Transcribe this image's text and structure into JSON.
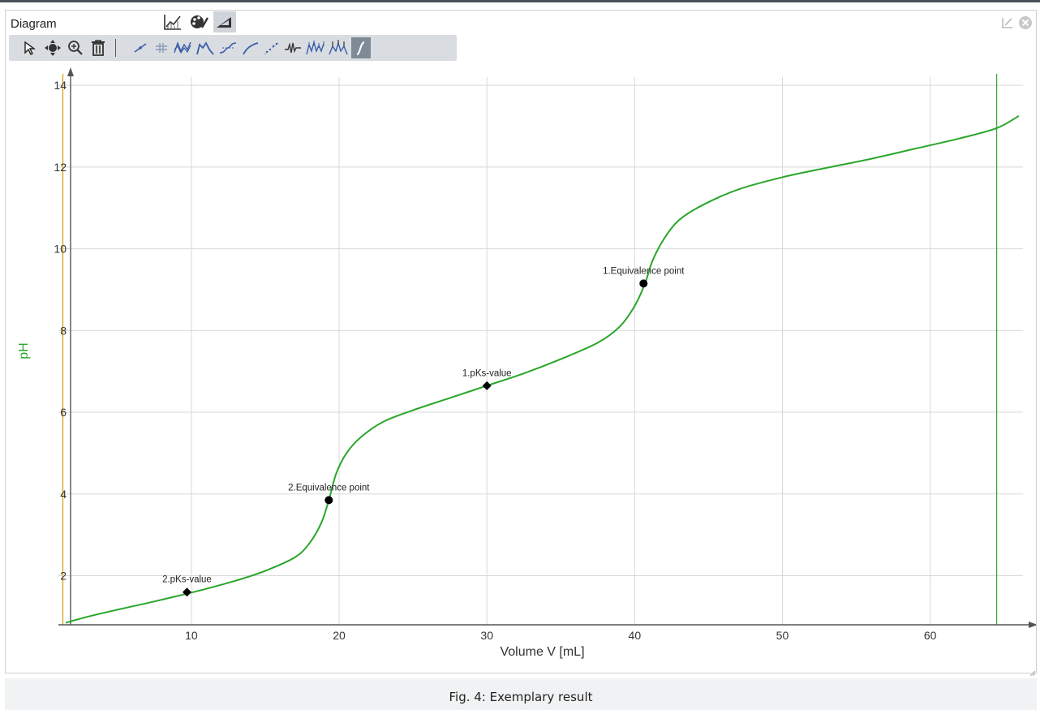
{
  "window": {
    "title": "Diagram",
    "caption": "Fig. 4: Exemplary result"
  },
  "view_tabs": [
    {
      "icon": "line-chart-icon",
      "active": false
    },
    {
      "icon": "palette-icon",
      "active": false
    },
    {
      "icon": "measure-triangle-icon",
      "active": true
    }
  ],
  "window_controls": [
    {
      "icon": "undock-icon"
    },
    {
      "icon": "close-circle-icon"
    }
  ],
  "toolbar": [
    {
      "icon": "pointer-icon",
      "active": false
    },
    {
      "icon": "move-icon",
      "active": false
    },
    {
      "icon": "zoom-icon",
      "active": false
    },
    {
      "icon": "trash-icon",
      "active": false
    },
    {
      "icon": "tangent-icon",
      "active": false
    },
    {
      "icon": "hash-icon",
      "active": false
    },
    {
      "icon": "multi-curve-icon",
      "active": false
    },
    {
      "icon": "peak-icon",
      "active": false
    },
    {
      "icon": "sigmoid-icon",
      "active": false
    },
    {
      "icon": "smooth-curve-icon",
      "active": false
    },
    {
      "icon": "scatter-fit-icon",
      "active": false
    },
    {
      "icon": "waveform-icon",
      "active": false
    },
    {
      "icon": "peaks-icon",
      "active": false
    },
    {
      "icon": "peaks-marker-icon",
      "active": false
    },
    {
      "icon": "titration-icon",
      "active": true
    }
  ],
  "colors": {
    "curve": "#2aa62a",
    "ylabel": "#2aa62a",
    "grid": "#d8d8d8",
    "axis": "#555555",
    "left_marker_line": "#d9a21a",
    "right_marker_line": "#3aa83a",
    "points": "#000000"
  },
  "chart_data": {
    "type": "line",
    "title": "",
    "xlabel": "Volume V [mL]",
    "ylabel": "pH",
    "xlim": [
      1,
      66.5
    ],
    "ylim": [
      0.8,
      14.2
    ],
    "xticks": [
      10,
      20,
      30,
      40,
      50,
      60
    ],
    "yticks": [
      2,
      4,
      6,
      8,
      10,
      12,
      14
    ],
    "grid": true,
    "left_marker_x": 1.3,
    "right_marker_x": 64.5,
    "series": [
      {
        "x": [
          1.5,
          3,
          5,
          7,
          9,
          11,
          13,
          15,
          17,
          18,
          18.8,
          19.3,
          19.8,
          20.5,
          21.5,
          23,
          25,
          27.5,
          30,
          32.5,
          35,
          37.5,
          39,
          40,
          40.7,
          41.2,
          42,
          43,
          44.5,
          47,
          50,
          53,
          56,
          59,
          62,
          64.5,
          66
        ],
        "y": [
          0.85,
          1.0,
          1.17,
          1.33,
          1.5,
          1.68,
          1.88,
          2.12,
          2.45,
          2.8,
          3.3,
          3.85,
          4.5,
          5.0,
          5.4,
          5.77,
          6.05,
          6.35,
          6.65,
          6.95,
          7.3,
          7.7,
          8.1,
          8.6,
          9.15,
          9.7,
          10.25,
          10.7,
          11.05,
          11.45,
          11.75,
          11.98,
          12.2,
          12.45,
          12.7,
          12.95,
          13.25
        ]
      }
    ],
    "annotations": [
      {
        "label": "2.pKs-value",
        "x": 9.7,
        "y": 1.6,
        "marker": "diamond"
      },
      {
        "label": "2.Equivalence point",
        "x": 19.3,
        "y": 3.85,
        "marker": "circle"
      },
      {
        "label": "1.pKs-value",
        "x": 30,
        "y": 6.65,
        "marker": "diamond"
      },
      {
        "label": "1.Equivalence point",
        "x": 40.6,
        "y": 9.15,
        "marker": "circle"
      }
    ]
  }
}
